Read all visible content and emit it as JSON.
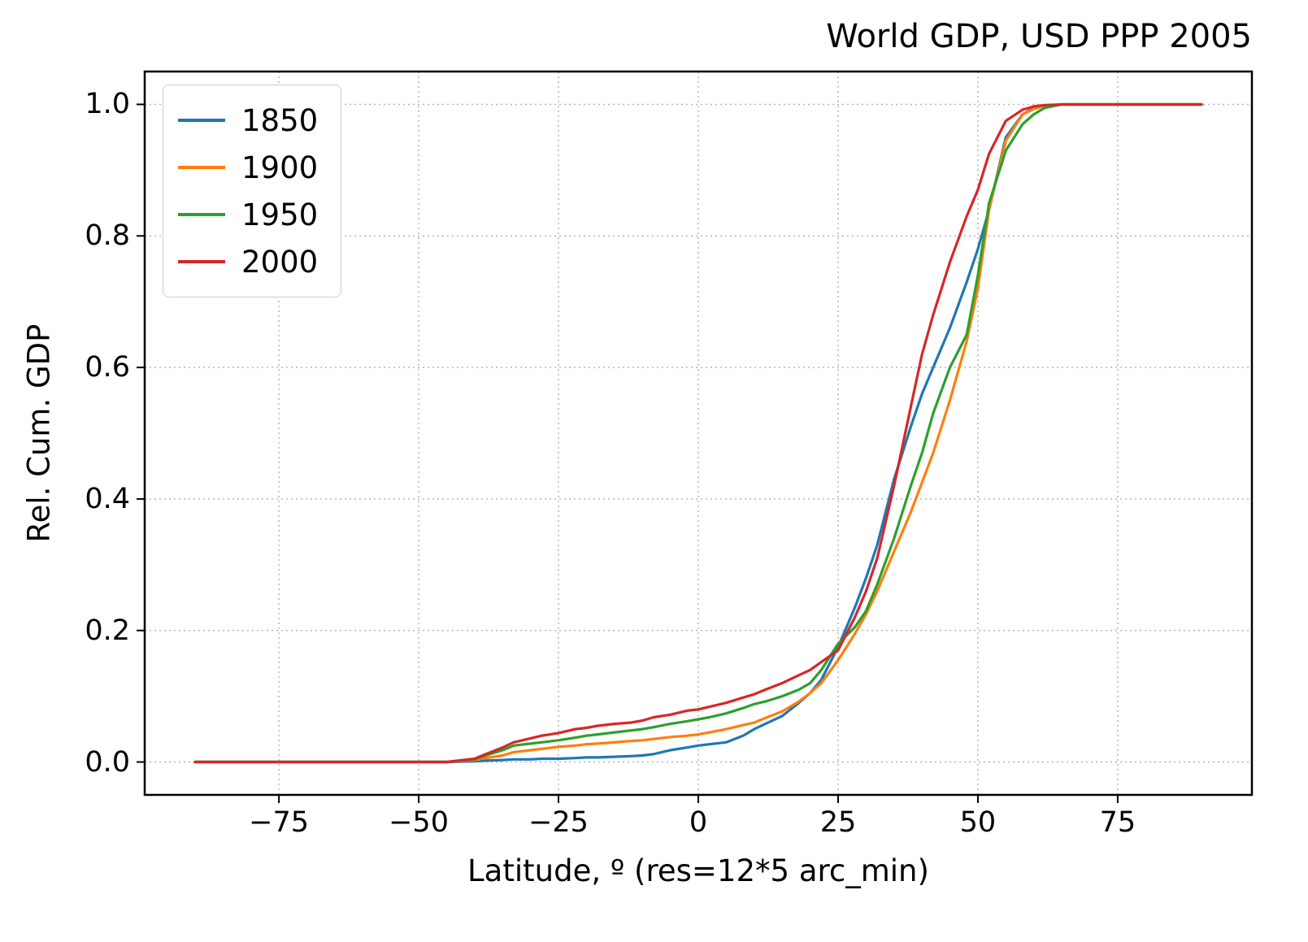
{
  "chart_data": {
    "type": "line",
    "title": "World GDP, USD PPP 2005",
    "xlabel": "Latitude, º (res=12*5 arc_min)",
    "ylabel": "Rel. Cum. GDP",
    "xlim": [
      -99,
      99
    ],
    "ylim": [
      -0.05,
      1.05
    ],
    "xticks": [
      -75,
      -50,
      -25,
      0,
      25,
      50,
      75
    ],
    "yticks": [
      0.0,
      0.2,
      0.4,
      0.6,
      0.8,
      1.0
    ],
    "xtick_labels": [
      "−75",
      "−50",
      "−25",
      "0",
      "25",
      "50",
      "75"
    ],
    "ytick_labels": [
      "0.0",
      "0.2",
      "0.4",
      "0.6",
      "0.8",
      "1.0"
    ],
    "grid": true,
    "grid_style": "dotted",
    "grid_color": "#b0b0b0",
    "legend_position": "upper left",
    "x": [
      -90,
      -60,
      -45,
      -40,
      -38,
      -35,
      -33,
      -30,
      -28,
      -25,
      -22,
      -20,
      -18,
      -15,
      -12,
      -10,
      -8,
      -5,
      -2,
      0,
      2,
      5,
      8,
      10,
      12,
      15,
      18,
      20,
      22,
      25,
      28,
      30,
      32,
      35,
      38,
      40,
      42,
      45,
      48,
      50,
      52,
      55,
      58,
      60,
      62,
      65,
      70,
      90
    ],
    "series": [
      {
        "name": "1850",
        "color": "#1f77b4",
        "values": [
          0,
          0,
          0,
          0.001,
          0.002,
          0.003,
          0.004,
          0.004,
          0.005,
          0.005,
          0.006,
          0.007,
          0.007,
          0.008,
          0.009,
          0.01,
          0.012,
          0.018,
          0.022,
          0.025,
          0.027,
          0.03,
          0.04,
          0.05,
          0.058,
          0.07,
          0.09,
          0.105,
          0.125,
          0.175,
          0.235,
          0.28,
          0.33,
          0.43,
          0.51,
          0.56,
          0.6,
          0.66,
          0.73,
          0.78,
          0.84,
          0.95,
          0.985,
          0.995,
          0.998,
          1.0,
          1.0,
          1.0
        ]
      },
      {
        "name": "1900",
        "color": "#ff7f0e",
        "values": [
          0,
          0,
          0,
          0.003,
          0.006,
          0.01,
          0.015,
          0.018,
          0.02,
          0.023,
          0.025,
          0.027,
          0.028,
          0.03,
          0.032,
          0.033,
          0.035,
          0.038,
          0.04,
          0.042,
          0.045,
          0.05,
          0.056,
          0.06,
          0.067,
          0.077,
          0.092,
          0.105,
          0.12,
          0.155,
          0.195,
          0.225,
          0.26,
          0.32,
          0.38,
          0.425,
          0.47,
          0.55,
          0.64,
          0.72,
          0.84,
          0.945,
          0.985,
          0.993,
          0.998,
          1.0,
          1.0,
          1.0
        ]
      },
      {
        "name": "1950",
        "color": "#2ca02c",
        "values": [
          0,
          0,
          0,
          0.004,
          0.01,
          0.018,
          0.025,
          0.028,
          0.03,
          0.033,
          0.037,
          0.04,
          0.042,
          0.045,
          0.048,
          0.05,
          0.053,
          0.058,
          0.062,
          0.065,
          0.068,
          0.074,
          0.082,
          0.088,
          0.092,
          0.1,
          0.11,
          0.12,
          0.14,
          0.18,
          0.205,
          0.23,
          0.27,
          0.34,
          0.42,
          0.47,
          0.53,
          0.6,
          0.65,
          0.74,
          0.85,
          0.93,
          0.97,
          0.985,
          0.995,
          1.0,
          1.0,
          1.0
        ]
      },
      {
        "name": "2000",
        "color": "#d62728",
        "values": [
          0,
          0,
          0,
          0.005,
          0.012,
          0.022,
          0.03,
          0.036,
          0.04,
          0.044,
          0.05,
          0.052,
          0.055,
          0.058,
          0.06,
          0.063,
          0.068,
          0.072,
          0.078,
          0.08,
          0.084,
          0.09,
          0.098,
          0.103,
          0.11,
          0.12,
          0.132,
          0.14,
          0.152,
          0.17,
          0.22,
          0.26,
          0.31,
          0.42,
          0.54,
          0.62,
          0.68,
          0.76,
          0.83,
          0.87,
          0.925,
          0.975,
          0.992,
          0.997,
          0.999,
          1.0,
          1.0,
          1.0
        ]
      }
    ]
  }
}
